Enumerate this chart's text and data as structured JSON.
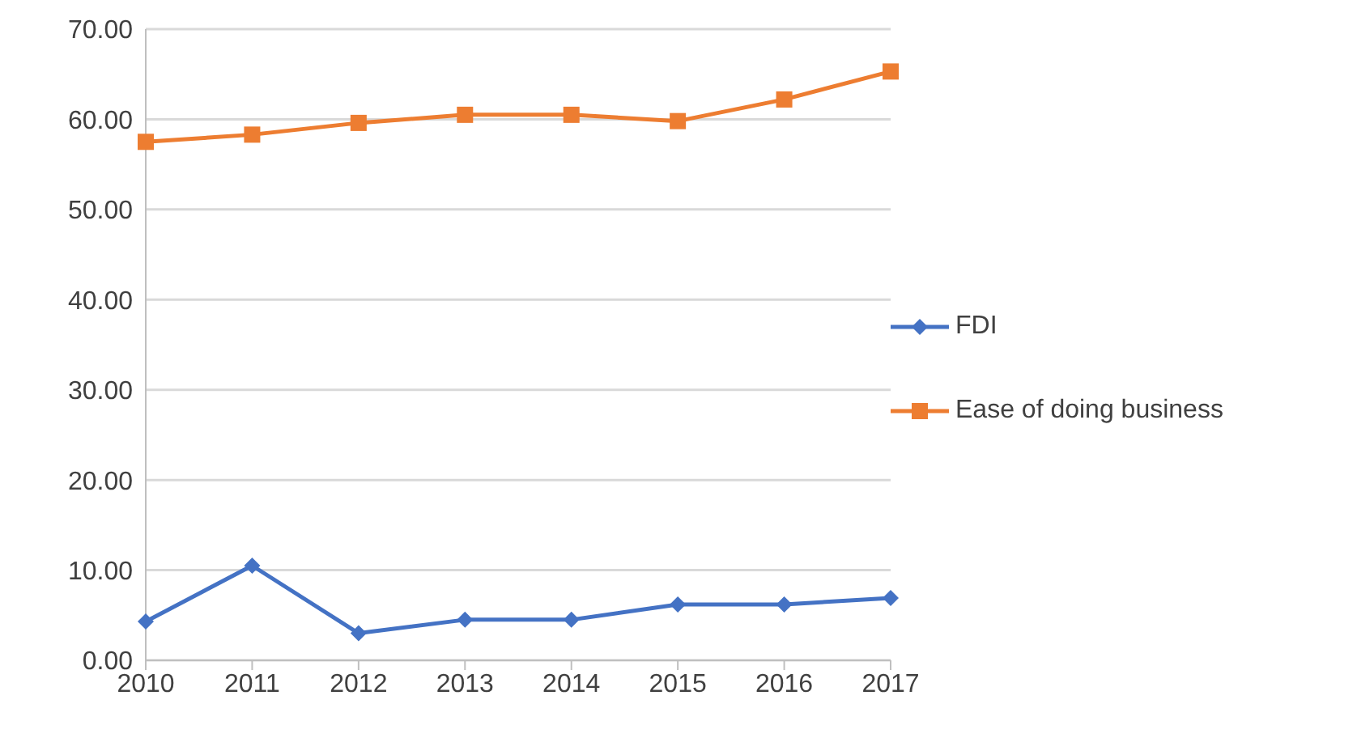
{
  "chart_data": {
    "type": "line",
    "categories": [
      "2010",
      "2011",
      "2012",
      "2013",
      "2014",
      "2015",
      "2016",
      "2017"
    ],
    "series": [
      {
        "name": "FDI",
        "color": "#4472c4",
        "marker": "diamond",
        "values": [
          4.3,
          10.5,
          3.0,
          4.5,
          4.5,
          6.2,
          6.2,
          6.9
        ]
      },
      {
        "name": "Ease of doing business",
        "color": "#ed7d31",
        "marker": "square",
        "values": [
          57.5,
          58.3,
          59.6,
          60.5,
          60.5,
          59.8,
          62.2,
          65.3
        ]
      }
    ],
    "ylim": [
      0,
      70
    ],
    "yticks": [
      {
        "value": 0,
        "label": "0.00"
      },
      {
        "value": 10,
        "label": "10.00"
      },
      {
        "value": 20,
        "label": "20.00"
      },
      {
        "value": 30,
        "label": "30.00"
      },
      {
        "value": 40,
        "label": "40.00"
      },
      {
        "value": 50,
        "label": "50.00"
      },
      {
        "value": 60,
        "label": "60.00"
      },
      {
        "value": 70,
        "label": "70.00"
      }
    ],
    "grid": "y",
    "legend": "right"
  }
}
